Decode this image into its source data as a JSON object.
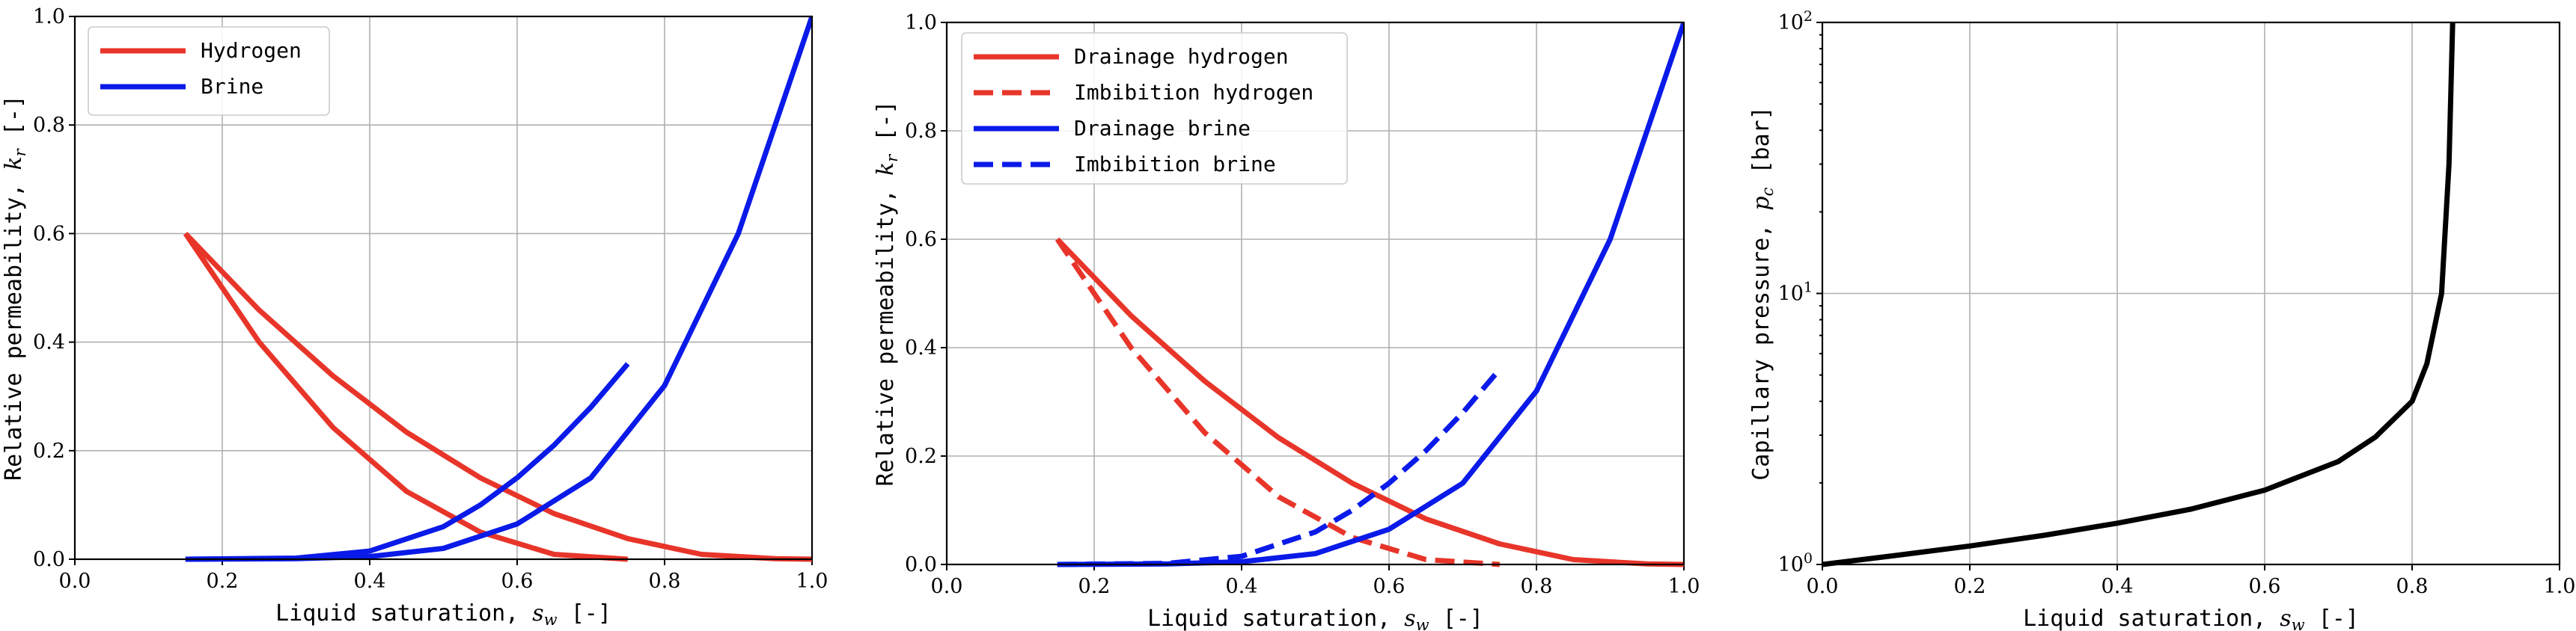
{
  "colors": {
    "hydrogen": "#e8352a",
    "brine": "#0a1ae8",
    "pc": "#000000"
  },
  "chart_data": [
    {
      "type": "line",
      "xlabel": "Liquid saturation, s_w [-]",
      "ylabel": "Relative permeability, k_r [-]",
      "xlim": [
        0,
        1
      ],
      "ylim": [
        0,
        1
      ],
      "xticks": [
        "0.0",
        "0.2",
        "0.4",
        "0.6",
        "0.8",
        "1.0"
      ],
      "yticks": [
        "0.0",
        "0.2",
        "0.4",
        "0.6",
        "0.8",
        "1.0"
      ],
      "grid": true,
      "legend_position": "top-left",
      "legend": [
        {
          "label": "Hydrogen",
          "color": "#e8352a",
          "dash": "solid"
        },
        {
          "label": "Brine",
          "color": "#0a1ae8",
          "dash": "solid"
        }
      ],
      "series": [
        {
          "color": "#e8352a",
          "dash": "solid",
          "x": [
            0.15,
            0.25,
            0.35,
            0.45,
            0.55,
            0.65,
            0.75,
            0.85,
            0.95,
            1.0
          ],
          "y": [
            0.6,
            0.459,
            0.338,
            0.234,
            0.15,
            0.084,
            0.038,
            0.009,
            0.001,
            0.0
          ]
        },
        {
          "color": "#e8352a",
          "dash": "solid",
          "x": [
            0.15,
            0.25,
            0.35,
            0.45,
            0.55,
            0.65,
            0.75
          ],
          "y": [
            0.6,
            0.4,
            0.243,
            0.125,
            0.05,
            0.009,
            0.0
          ]
        },
        {
          "color": "#0a1ae8",
          "dash": "solid",
          "x": [
            0.15,
            0.3,
            0.4,
            0.5,
            0.6,
            0.7,
            0.8,
            0.9,
            1.0
          ],
          "y": [
            0.0,
            0.001,
            0.005,
            0.02,
            0.065,
            0.15,
            0.32,
            0.6,
            1.0
          ]
        },
        {
          "color": "#0a1ae8",
          "dash": "solid",
          "x": [
            0.15,
            0.3,
            0.4,
            0.5,
            0.55,
            0.6,
            0.65,
            0.7,
            0.75
          ],
          "y": [
            0.0,
            0.002,
            0.015,
            0.06,
            0.1,
            0.15,
            0.21,
            0.28,
            0.36
          ]
        }
      ]
    },
    {
      "type": "line",
      "xlabel": "Liquid saturation, s_w [-]",
      "ylabel": "Relative permeability, k_r [-]",
      "xlim": [
        0,
        1
      ],
      "ylim": [
        0,
        1
      ],
      "xticks": [
        "0.0",
        "0.2",
        "0.4",
        "0.6",
        "0.8",
        "1.0"
      ],
      "yticks": [
        "0.0",
        "0.2",
        "0.4",
        "0.6",
        "0.8",
        "1.0"
      ],
      "grid": true,
      "legend_position": "top-left",
      "legend": [
        {
          "label": "Drainage hydrogen",
          "color": "#e8352a",
          "dash": "solid"
        },
        {
          "label": "Imbibition hydrogen",
          "color": "#e8352a",
          "dash": "dashed"
        },
        {
          "label": "Drainage brine",
          "color": "#0a1ae8",
          "dash": "solid"
        },
        {
          "label": "Imbibition brine",
          "color": "#0a1ae8",
          "dash": "dashed"
        }
      ],
      "series": [
        {
          "name": "Drainage hydrogen",
          "color": "#e8352a",
          "dash": "solid",
          "x": [
            0.15,
            0.25,
            0.35,
            0.45,
            0.55,
            0.65,
            0.75,
            0.85,
            0.95,
            1.0
          ],
          "y": [
            0.6,
            0.459,
            0.338,
            0.234,
            0.15,
            0.084,
            0.038,
            0.009,
            0.001,
            0.0
          ]
        },
        {
          "name": "Imbibition hydrogen",
          "color": "#e8352a",
          "dash": "dashed",
          "x": [
            0.15,
            0.25,
            0.35,
            0.45,
            0.55,
            0.65,
            0.75
          ],
          "y": [
            0.6,
            0.4,
            0.243,
            0.125,
            0.05,
            0.009,
            0.0
          ]
        },
        {
          "name": "Drainage brine",
          "color": "#0a1ae8",
          "dash": "solid",
          "x": [
            0.15,
            0.3,
            0.4,
            0.5,
            0.6,
            0.7,
            0.8,
            0.9,
            1.0
          ],
          "y": [
            0.0,
            0.001,
            0.005,
            0.02,
            0.065,
            0.15,
            0.32,
            0.6,
            1.0
          ]
        },
        {
          "name": "Imbibition brine",
          "color": "#0a1ae8",
          "dash": "dashed",
          "x": [
            0.15,
            0.3,
            0.4,
            0.5,
            0.55,
            0.6,
            0.65,
            0.7,
            0.75
          ],
          "y": [
            0.0,
            0.002,
            0.015,
            0.06,
            0.1,
            0.15,
            0.21,
            0.28,
            0.36
          ]
        }
      ]
    },
    {
      "type": "line",
      "xlabel": "Liquid saturation, s_w [-]",
      "ylabel": "Capillary pressure, p_c [bar]",
      "xlim": [
        0,
        1
      ],
      "ylim": [
        1,
        100
      ],
      "yscale": "log",
      "xticks": [
        "0.0",
        "0.2",
        "0.4",
        "0.6",
        "0.8",
        "1.0"
      ],
      "yticks": [
        {
          "value": 1,
          "base": "10",
          "exp": "0"
        },
        {
          "value": 10,
          "base": "10",
          "exp": "1"
        },
        {
          "value": 100,
          "base": "10",
          "exp": "2"
        }
      ],
      "grid": true,
      "series": [
        {
          "color": "#000000",
          "dash": "solid",
          "x": [
            0.0,
            0.1,
            0.2,
            0.3,
            0.4,
            0.5,
            0.6,
            0.7,
            0.75,
            0.8,
            0.82,
            0.84,
            0.85,
            0.855
          ],
          "y": [
            1.0,
            1.08,
            1.17,
            1.28,
            1.42,
            1.6,
            1.88,
            2.4,
            2.95,
            4.0,
            5.5,
            10.0,
            30.0,
            100.0
          ]
        }
      ]
    }
  ]
}
